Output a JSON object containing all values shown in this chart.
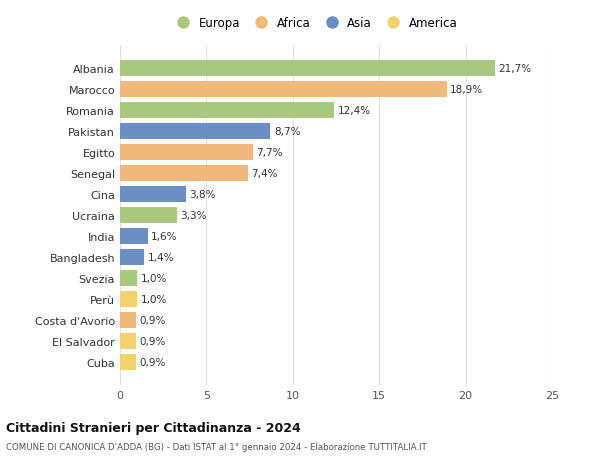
{
  "categories": [
    "Albania",
    "Marocco",
    "Romania",
    "Pakistan",
    "Egitto",
    "Senegal",
    "Cina",
    "Ucraina",
    "India",
    "Bangladesh",
    "Svezia",
    "Perù",
    "Costa d'Avorio",
    "El Salvador",
    "Cuba"
  ],
  "values": [
    21.7,
    18.9,
    12.4,
    8.7,
    7.7,
    7.4,
    3.8,
    3.3,
    1.6,
    1.4,
    1.0,
    1.0,
    0.9,
    0.9,
    0.9
  ],
  "labels": [
    "21,7%",
    "18,9%",
    "12,4%",
    "8,7%",
    "7,7%",
    "7,4%",
    "3,8%",
    "3,3%",
    "1,6%",
    "1,4%",
    "1,0%",
    "1,0%",
    "0,9%",
    "0,9%",
    "0,9%"
  ],
  "continents": [
    "Europa",
    "Africa",
    "Europa",
    "Asia",
    "Africa",
    "Africa",
    "Asia",
    "Europa",
    "Asia",
    "Asia",
    "Europa",
    "America",
    "Africa",
    "America",
    "America"
  ],
  "colors": {
    "Europa": "#a8c97f",
    "Africa": "#f0b87a",
    "Asia": "#6b8ec4",
    "America": "#f5d06e"
  },
  "legend_order": [
    "Europa",
    "Africa",
    "Asia",
    "America"
  ],
  "title1": "Cittadini Stranieri per Cittadinanza - 2024",
  "title2": "COMUNE DI CANONICA D'ADDA (BG) - Dati ISTAT al 1° gennaio 2024 - Elaborazione TUTTITALIA.IT",
  "xlim": [
    0,
    25
  ],
  "xticks": [
    0,
    5,
    10,
    15,
    20,
    25
  ],
  "background_color": "#ffffff",
  "grid_color": "#e0e0e0",
  "bar_height": 0.75
}
